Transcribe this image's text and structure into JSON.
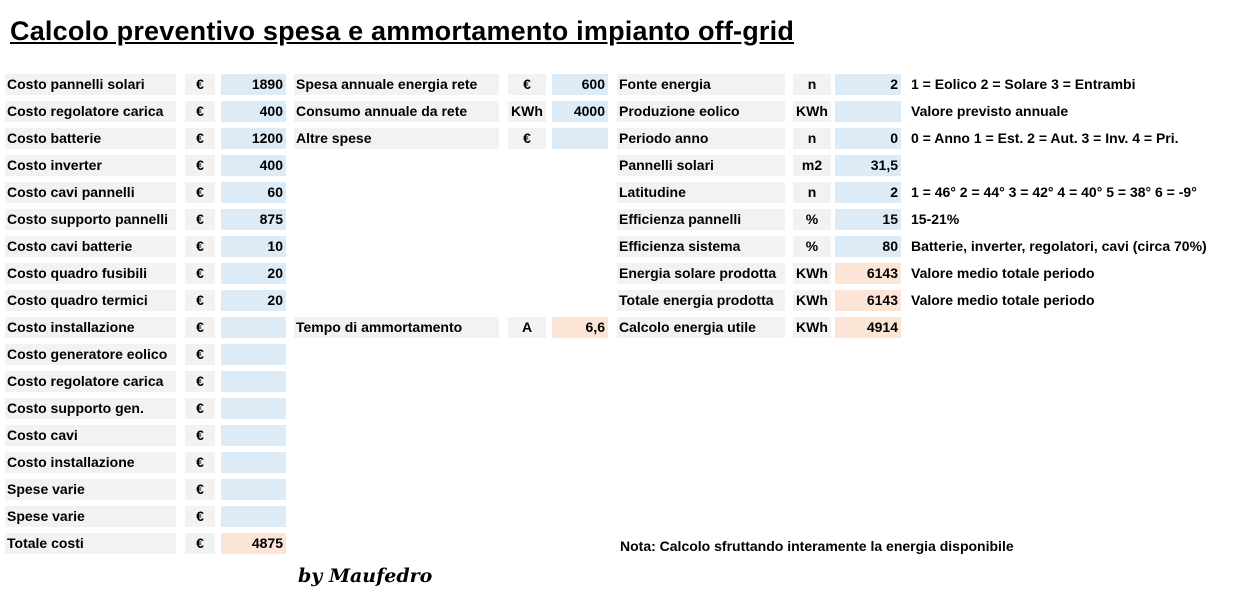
{
  "title": "Calcolo preventivo spesa e ammortamento impianto off-grid",
  "costs": [
    {
      "label": "Costo pannelli solari",
      "unit": "€",
      "value": "1890"
    },
    {
      "label": "Costo regolatore carica",
      "unit": "€",
      "value": "400"
    },
    {
      "label": "Costo batterie",
      "unit": "€",
      "value": "1200"
    },
    {
      "label": "Costo inverter",
      "unit": "€",
      "value": "400"
    },
    {
      "label": "Costo cavi pannelli",
      "unit": "€",
      "value": "60"
    },
    {
      "label": "Costo supporto pannelli",
      "unit": "€",
      "value": "875"
    },
    {
      "label": "Costo cavi batterie",
      "unit": "€",
      "value": "10"
    },
    {
      "label": "Costo quadro fusibili",
      "unit": "€",
      "value": "20"
    },
    {
      "label": "Costo quadro termici",
      "unit": "€",
      "value": "20"
    },
    {
      "label": "Costo installazione",
      "unit": "€",
      "value": ""
    },
    {
      "label": "Costo generatore eolico",
      "unit": "€",
      "value": ""
    },
    {
      "label": "Costo regolatore carica",
      "unit": "€",
      "value": ""
    },
    {
      "label": "Costo supporto gen.",
      "unit": "€",
      "value": ""
    },
    {
      "label": "Costo cavi",
      "unit": "€",
      "value": ""
    },
    {
      "label": "Costo installazione",
      "unit": "€",
      "value": ""
    },
    {
      "label": "Spese varie",
      "unit": "€",
      "value": ""
    },
    {
      "label": "Spese varie",
      "unit": "€",
      "value": ""
    },
    {
      "label": "Totale costi",
      "unit": "€",
      "value": "4875"
    }
  ],
  "expenses": [
    {
      "label": "Spesa annuale energia rete",
      "unit": "€",
      "value": "600"
    },
    {
      "label": "Consumo annuale da rete",
      "unit": "KWh",
      "value": "4000"
    },
    {
      "label": "Altre spese",
      "unit": "€",
      "value": ""
    }
  ],
  "amortization": {
    "label": "Tempo di ammortamento",
    "unit": "A",
    "value": "6,6"
  },
  "energy": [
    {
      "label": "Fonte energia",
      "unit": "n",
      "value": "2",
      "note": "1 = Eolico   2 = Solare   3 = Entrambi"
    },
    {
      "label": "Produzione eolico",
      "unit": "KWh",
      "value": "",
      "note": "Valore previsto annuale"
    },
    {
      "label": "Periodo anno",
      "unit": "n",
      "value": "0",
      "note": "0 = Anno  1 = Est.  2 = Aut.  3 = Inv.  4 = Pri."
    },
    {
      "label": "Pannelli solari",
      "unit": "m2",
      "value": "31,5",
      "note": ""
    },
    {
      "label": "Latitudine",
      "unit": "n",
      "value": "2",
      "note": "1 = 46°  2 = 44°  3 = 42°  4 = 40°  5 = 38°  6 = -9°"
    },
    {
      "label": "Efficienza pannelli",
      "unit": "%",
      "value": "15",
      "note": "15-21%"
    },
    {
      "label": "Efficienza sistema",
      "unit": "%",
      "value": "80",
      "note": "Batterie, inverter, regolatori, cavi (circa 70%)"
    },
    {
      "label": "Energia  solare prodotta",
      "unit": "KWh",
      "value": "6143",
      "note": "Valore medio totale periodo"
    },
    {
      "label": "Totale energia prodotta",
      "unit": "KWh",
      "value": "6143",
      "note": "Valore medio totale periodo"
    },
    {
      "label": "Calcolo energia utile",
      "unit": "KWh",
      "value": "4914",
      "note": ""
    }
  ],
  "footnote": "Nota: Calcolo sfruttando interamente la energia disponibile",
  "signature": "by Maufedro",
  "colors": {
    "input_fill": "#ddebf7",
    "output_fill": "#fce4d6",
    "label_fill": "#f2f2f2"
  }
}
